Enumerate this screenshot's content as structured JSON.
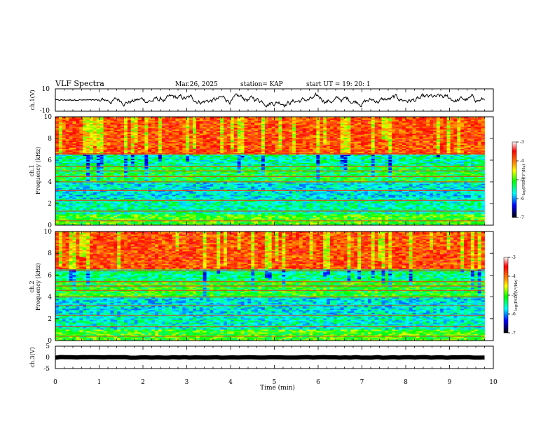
{
  "header": {
    "title": "VLF Spectra",
    "date": "Mar.26, 2025",
    "station": "station= KAP",
    "start": "start  UT  =    19: 20: 1"
  },
  "chart_data": [
    {
      "type": "line",
      "panel": "ch1-waveform",
      "ylabel": "ch.1(V)",
      "ylim": [
        -10,
        10
      ],
      "y_ticks": [
        "10",
        "-10"
      ],
      "x_range_min": [
        0,
        9.8
      ],
      "mean": 0,
      "amplitude_range": [
        -9,
        6
      ]
    },
    {
      "type": "heatmap",
      "panel": "ch1-spectrogram",
      "ylabel_1": "ch.1",
      "ylabel_2": "Frequency (kHz)",
      "ylim": [
        0,
        10
      ],
      "y_ticks": [
        "0",
        "2",
        "4",
        "6",
        "8",
        "10"
      ],
      "x_range_min": [
        0,
        9.8
      ],
      "colorbar": {
        "label": "log(PSD)(V²/Hz)",
        "ticks": [
          "-3",
          "-4",
          "-5",
          "-6",
          "-7"
        ],
        "range": [
          -7,
          -3
        ]
      },
      "dominant_log_psd_by_band": [
        {
          "band_khz": [
            0,
            1
          ],
          "log_psd": -5.0
        },
        {
          "band_khz": [
            1,
            2.5
          ],
          "log_psd": -5.5
        },
        {
          "band_khz": [
            2.5,
            4
          ],
          "log_psd": -5.7
        },
        {
          "band_khz": [
            4,
            5.5
          ],
          "log_psd": -5.2
        },
        {
          "band_khz": [
            5.5,
            6.5
          ],
          "log_psd": -5.5
        },
        {
          "band_khz": [
            6.5,
            10
          ],
          "log_psd": -3.8
        }
      ],
      "spectral_lines_khz": [
        0.4,
        1.3,
        2.3,
        3.2,
        4.0,
        4.5,
        5.0,
        5.4,
        6.6
      ]
    },
    {
      "type": "heatmap",
      "panel": "ch2-spectrogram",
      "ylabel_1": "ch.2",
      "ylabel_2": "Frequency (kHz)",
      "ylim": [
        0,
        10
      ],
      "y_ticks": [
        "0",
        "2",
        "4",
        "6",
        "8",
        "10"
      ],
      "x_range_min": [
        0,
        9.8
      ],
      "colorbar": {
        "label": "log(PSD)(V²/Hz)",
        "ticks": [
          "-3",
          "-4",
          "-5",
          "-6",
          "-7"
        ],
        "range": [
          -7,
          -3
        ]
      },
      "dominant_log_psd_by_band": [
        {
          "band_khz": [
            0,
            1
          ],
          "log_psd": -5.0
        },
        {
          "band_khz": [
            1,
            2.5
          ],
          "log_psd": -5.6
        },
        {
          "band_khz": [
            2.5,
            4
          ],
          "log_psd": -5.7
        },
        {
          "band_khz": [
            4,
            5.5
          ],
          "log_psd": -5.1
        },
        {
          "band_khz": [
            5.5,
            6.5
          ],
          "log_psd": -5.4
        },
        {
          "band_khz": [
            6.5,
            10
          ],
          "log_psd": -3.8
        }
      ],
      "spectral_lines_khz": [
        0.4,
        1.3,
        2.3,
        3.2,
        4.0,
        4.6,
        5.0,
        5.4,
        6.4
      ]
    },
    {
      "type": "line",
      "panel": "ch3-waveform",
      "ylabel": "ch.3(V)",
      "ylim": [
        -5,
        5
      ],
      "y_ticks": [
        "5",
        "0",
        "-5"
      ],
      "x_range_min": [
        0,
        9.8
      ],
      "mean": 0,
      "amplitude_range": [
        -0.4,
        0.4
      ]
    }
  ],
  "x_axis": {
    "label": "Time (min)",
    "ticks": [
      "0",
      "1",
      "2",
      "3",
      "4",
      "5",
      "6",
      "7",
      "8",
      "9",
      "10"
    ],
    "xlim": [
      0,
      10
    ]
  }
}
